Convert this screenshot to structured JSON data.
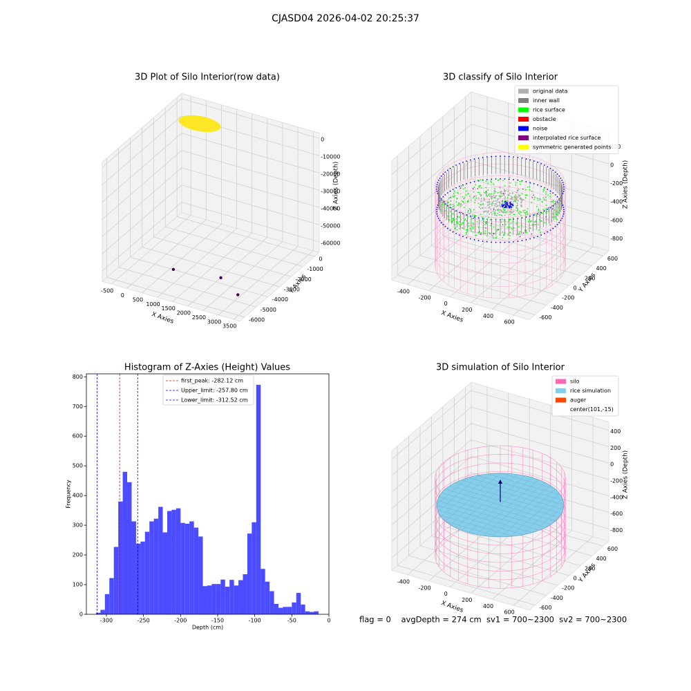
{
  "title": "CJASD04 2026-04-02 20:25:37",
  "footer": "flag = 0    avgDepth = 274 cm  sv1 = 700~2300  sv2 = 700~2300",
  "chart_data": [
    {
      "type": "scatter3d",
      "title": "3D Plot of Silo Interior(row data)",
      "xlabel": "X Axies",
      "ylabel": "Y Axies",
      "zlabel": "Z Axies (Depth)",
      "xlim": [
        -800,
        3700
      ],
      "xticks": [
        -500,
        0,
        500,
        1000,
        1500,
        2000,
        2500,
        3000,
        3500
      ],
      "ylim": [
        -6400,
        400
      ],
      "yticks": [
        0,
        -1000,
        -2000,
        -3000,
        -4000,
        -5000,
        -6000
      ],
      "zlim": [
        -66000,
        3000
      ],
      "zticks": [
        0,
        -10000,
        -20000,
        -30000,
        -40000,
        -50000,
        -60000
      ],
      "series": [
        {
          "color": "#440154",
          "x": [
            800,
            2200,
            3100
          ],
          "y": [
            -4500,
            -4100,
            -5000
          ],
          "z": [
            -62000,
            -62000,
            -62000
          ]
        }
      ]
    },
    {
      "type": "scatter3d",
      "title": "3D classify of Silo Interior",
      "xlabel": "X Axies",
      "ylabel": "Y Axies",
      "zlabel": "Z Axies (Depth)",
      "xlim": [
        -550,
        750
      ],
      "xticks": [
        -400,
        -200,
        0,
        200,
        400,
        600
      ],
      "ylim": [
        -700,
        700
      ],
      "yticks": [
        -600,
        -400,
        -200,
        0,
        200,
        400,
        600
      ],
      "zlim": [
        -950,
        350
      ],
      "zticks": [
        -800,
        -600,
        -400,
        -200,
        0,
        200
      ],
      "series": [
        {
          "name": "original data",
          "color": "#b0b0b0"
        },
        {
          "name": "inner wall",
          "color": "#808080"
        },
        {
          "name": "rice surface",
          "color": "#00ff00"
        },
        {
          "name": "obstacle",
          "color": "#ff0000"
        },
        {
          "name": "noise",
          "color": "#0000ff"
        },
        {
          "name": "interpolated rice surface",
          "color": "#800080"
        },
        {
          "name": "symmetric generated points",
          "color": "#ffff00"
        }
      ]
    },
    {
      "type": "histogram",
      "title": "Histogram of Z-Axies (Height) Values",
      "xlabel": "Depth (cm)",
      "ylabel": "Frequency",
      "color": "#4b4bff",
      "bins": [
        -314,
        -308,
        -302,
        -296,
        -290,
        -284,
        -278,
        -272,
        -266,
        -260,
        -254,
        -248,
        -242,
        -236,
        -230,
        -224,
        -218,
        -212,
        -206,
        -200,
        -194,
        -188,
        -182,
        -176,
        -170,
        -164,
        -158,
        -152,
        -146,
        -140,
        -134,
        -128,
        -122,
        -116,
        -110,
        -104,
        -98,
        -92,
        -86,
        -80,
        -74,
        -68,
        -62,
        -56,
        -50,
        -44,
        -38,
        -32,
        -26,
        -20,
        -14
      ],
      "values": [
        5,
        15,
        68,
        122,
        227,
        380,
        480,
        445,
        313,
        238,
        245,
        278,
        313,
        322,
        362,
        276,
        348,
        352,
        357,
        308,
        305,
        313,
        292,
        262,
        95,
        97,
        102,
        102,
        117,
        93,
        116,
        97,
        115,
        135,
        272,
        310,
        773,
        153,
        110,
        78,
        35,
        22,
        25,
        25,
        40,
        72,
        33,
        10,
        8,
        10
      ],
      "xlim": [
        -327,
        0
      ],
      "xticks": [
        -300,
        -250,
        -200,
        -150,
        -100,
        -50,
        0
      ],
      "ylim": [
        0,
        810
      ],
      "yticks": [
        0,
        100,
        200,
        300,
        400,
        500,
        600,
        700,
        800
      ],
      "vlines": [
        {
          "label": "first_peak: -282.12 cm",
          "value": -282.12,
          "color": "#ff0000"
        },
        {
          "label": "Upper_limit: -257.80 cm",
          "value": -257.8,
          "color": "#0000ff"
        },
        {
          "label": "Lower_limit: -312.52 cm",
          "value": -312.52,
          "color": "#0000ff"
        }
      ]
    },
    {
      "type": "scatter3d",
      "title": "3D simulation of Silo Interior",
      "xlabel": "X Axies",
      "ylabel": "Y Axies",
      "zlabel": "Z Axies (Depth)",
      "xlim": [
        -550,
        750
      ],
      "xticks": [
        -400,
        -200,
        0,
        200,
        400,
        600
      ],
      "ylim": [
        -700,
        700
      ],
      "yticks": [
        -600,
        -400,
        -200,
        0,
        200,
        400,
        600
      ],
      "zlim": [
        -950,
        500
      ],
      "zticks": [
        -800,
        -600,
        -400,
        -200,
        0,
        200,
        400
      ],
      "series": [
        {
          "name": "silo",
          "color": "#ff69b4"
        },
        {
          "name": "rice simulation",
          "color": "#87ceeb"
        },
        {
          "name": "auger",
          "color": "#ff4500"
        },
        {
          "name": "center(101,-15)"
        }
      ]
    }
  ]
}
